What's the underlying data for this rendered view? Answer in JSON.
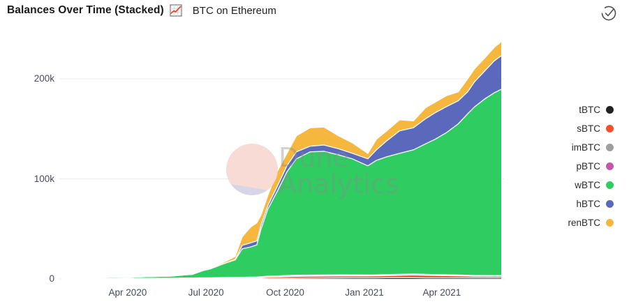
{
  "header": {
    "title": "Balances Over Time (Stacked)",
    "subtitle": "BTC on Ethereum",
    "title_icon": "line-chart-icon",
    "status_icon": "check-circle-icon"
  },
  "watermark": {
    "line1": "Dune",
    "line2": "Analytics"
  },
  "colors": {
    "background": "#ffffff",
    "title_text": "#1a1a1a",
    "axis_text": "#434c5e",
    "gridline": "#ebebeb",
    "icon_stroke": "#4f4f4f",
    "title_icon_line": "#e0452f",
    "watermark_circle_pink": "#f8d9d2",
    "watermark_circle_lavender": "#d5d2e4",
    "watermark_text": "#878d88"
  },
  "legend": {
    "items": [
      {
        "label": "tBTC",
        "color": "#212121"
      },
      {
        "label": "sBTC",
        "color": "#fa4e2c"
      },
      {
        "label": "imBTC",
        "color": "#9e9e9e"
      },
      {
        "label": "pBTC",
        "color": "#c457ad"
      },
      {
        "label": "wBTC",
        "color": "#2fcc62"
      },
      {
        "label": "hBTC",
        "color": "#5b69bd"
      },
      {
        "label": "renBTC",
        "color": "#f6b73e"
      }
    ]
  },
  "chart_data": {
    "type": "area",
    "stacked": true,
    "title": "Balances Over Time (Stacked)",
    "subtitle": "BTC on Ethereum",
    "xlabel": "",
    "ylabel": "",
    "values_unit": "thousands of BTC",
    "ylim": [
      0,
      243
    ],
    "grid": "horizontal",
    "legend_position": "right",
    "x": [
      "2020-01-15",
      "2020-02-15",
      "2020-03-11",
      "2020-04-01",
      "2020-04-24",
      "2020-05-22",
      "2020-06-05",
      "2020-06-15",
      "2020-06-28",
      "2020-07-06",
      "2020-07-22",
      "2020-08-04",
      "2020-08-12",
      "2020-08-22",
      "2020-08-29",
      "2020-09-03",
      "2020-09-11",
      "2020-09-22",
      "2020-10-03",
      "2020-10-14",
      "2020-10-30",
      "2020-11-15",
      "2020-12-02",
      "2020-12-18",
      "2021-01-05",
      "2021-01-15",
      "2021-01-27",
      "2021-02-11",
      "2021-02-27",
      "2021-03-13",
      "2021-03-24",
      "2021-04-06",
      "2021-04-20",
      "2021-05-01",
      "2021-05-09",
      "2021-05-21",
      "2021-06-01",
      "2021-06-09"
    ],
    "series": [
      {
        "name": "tBTC",
        "color": "#212121",
        "values": [
          0,
          0,
          0,
          0,
          0,
          0,
          0,
          0,
          0,
          0,
          0,
          0.1,
          0.1,
          0.1,
          0.1,
          0.2,
          0.3,
          0.4,
          0.5,
          0.6,
          0.7,
          0.8,
          0.9,
          1,
          1,
          1,
          1.1,
          1.1,
          1.1,
          1,
          1,
          1,
          1,
          1,
          1,
          1,
          1,
          1
        ]
      },
      {
        "name": "sBTC",
        "color": "#fa4e2c",
        "values": [
          0,
          0,
          0,
          0.1,
          0.1,
          0.1,
          0.2,
          0.2,
          0.3,
          0.3,
          0.4,
          0.5,
          0.6,
          0.7,
          0.8,
          1,
          1.3,
          1.5,
          1.8,
          2,
          2,
          2,
          2,
          1.9,
          1.9,
          2,
          2.2,
          2.5,
          2.8,
          2.6,
          2.4,
          2.2,
          2,
          1.8,
          1.6,
          1.5,
          1.5,
          1.5
        ]
      },
      {
        "name": "imBTC",
        "color": "#9e9e9e",
        "values": [
          0.2,
          0.3,
          0.3,
          0.4,
          0.5,
          0.5,
          0.6,
          0.6,
          0.7,
          0.7,
          0.8,
          0.8,
          0.8,
          0.8,
          0.8,
          0.8,
          0.9,
          0.9,
          0.9,
          0.9,
          0.9,
          0.9,
          0.9,
          0.9,
          0.8,
          0.8,
          0.8,
          0.8,
          0.8,
          0.8,
          0.7,
          0.7,
          0.7,
          0.7,
          0.7,
          0.7,
          0.7,
          0.7
        ]
      },
      {
        "name": "pBTC",
        "color": "#c457ad",
        "values": [
          0,
          0,
          0,
          0,
          0,
          0.1,
          0.1,
          0.1,
          0.1,
          0.1,
          0.2,
          0.2,
          0.2,
          0.2,
          0.2,
          0.2,
          0.2,
          0.2,
          0.2,
          0.2,
          0.2,
          0.2,
          0.2,
          0.2,
          0.2,
          0.2,
          0.2,
          0.2,
          0.2,
          0.2,
          0.2,
          0.2,
          0.2,
          0.1,
          0.1,
          0.1,
          0.1,
          0.1
        ]
      },
      {
        "name": "wBTC",
        "color": "#2fcc62",
        "values": [
          0.4,
          0.7,
          1.1,
          1.1,
          1.7,
          2.1,
          3.1,
          3.6,
          7.3,
          8.9,
          13.9,
          17.4,
          28.3,
          30.2,
          32.1,
          47.8,
          67.3,
          85,
          103.6,
          116.3,
          123.2,
          123.6,
          120,
          116,
          109.1,
          114.5,
          117.7,
          120.9,
          124.1,
          130.4,
          135.2,
          141.9,
          151.1,
          161.4,
          168.6,
          176.7,
          182.7,
          186.2
        ]
      },
      {
        "name": "hBTC",
        "color": "#5b69bd",
        "values": [
          0,
          0,
          0,
          0,
          0,
          0,
          0,
          0,
          0,
          0,
          0,
          0.5,
          3.5,
          4,
          4,
          4,
          3.5,
          4.9,
          6,
          7,
          5.6,
          6.3,
          6,
          5.5,
          7,
          10.5,
          16,
          22.5,
          22,
          25,
          26.5,
          26,
          23,
          22,
          25,
          28,
          32,
          33.5
        ]
      },
      {
        "name": "renBTC",
        "color": "#f6b73e",
        "values": [
          0,
          0,
          0,
          0,
          0,
          0,
          0,
          0,
          0,
          0.5,
          1.5,
          3,
          8.5,
          16,
          18,
          10,
          10.5,
          15,
          12.5,
          16,
          18.5,
          18,
          13,
          10.5,
          5.5,
          10.5,
          10,
          11,
          7,
          11,
          10.5,
          11,
          9,
          13,
          13,
          13,
          13.5,
          14
        ]
      }
    ],
    "y_ticks": [
      {
        "value": 0,
        "label": "0"
      },
      {
        "value": 100,
        "label": "100k"
      },
      {
        "value": 200,
        "label": "200k"
      }
    ],
    "x_ticks": [
      {
        "date": "2020-04-01",
        "label": "Apr 2020"
      },
      {
        "date": "2020-07-01",
        "label": "Jul 2020"
      },
      {
        "date": "2020-10-01",
        "label": "Oct 2020"
      },
      {
        "date": "2021-01-01",
        "label": "Jan 2021"
      },
      {
        "date": "2021-04-01",
        "label": "Apr 2021"
      }
    ]
  }
}
